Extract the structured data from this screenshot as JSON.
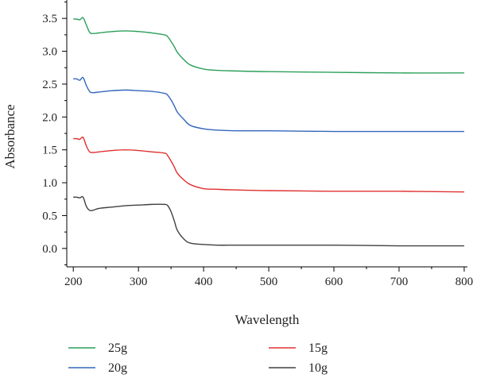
{
  "chart_data": {
    "type": "line",
    "xlabel": "Wavelength",
    "ylabel": "Absorbance",
    "xlim": [
      190,
      805
    ],
    "ylim": [
      -0.28,
      3.78
    ],
    "xticks": [
      200,
      300,
      400,
      500,
      600,
      700,
      800
    ],
    "xtick_labels": [
      "200",
      "300",
      "400",
      "500",
      "600",
      "700",
      "800"
    ],
    "yticks": [
      0.0,
      0.5,
      1.0,
      1.5,
      2.0,
      2.5,
      3.0,
      3.5
    ],
    "ytick_labels": [
      "0.0",
      "0.5",
      "1.0",
      "1.5",
      "2.0",
      "2.5",
      "3.0",
      "3.5"
    ],
    "grid": false,
    "legend_position": "bottom",
    "x": [
      200,
      205,
      210,
      215,
      220,
      225,
      230,
      240,
      260,
      280,
      300,
      320,
      340,
      345,
      350,
      355,
      360,
      370,
      380,
      400,
      420,
      450,
      500,
      600,
      700,
      800
    ],
    "series": [
      {
        "name": "25g",
        "color": "#2ca05a",
        "values": [
          3.49,
          3.49,
          3.48,
          3.51,
          3.4,
          3.29,
          3.27,
          3.28,
          3.3,
          3.31,
          3.3,
          3.28,
          3.25,
          3.22,
          3.15,
          3.07,
          2.98,
          2.87,
          2.79,
          2.73,
          2.71,
          2.7,
          2.69,
          2.68,
          2.67,
          2.67
        ]
      },
      {
        "name": "20g",
        "color": "#3366bb",
        "values": [
          2.58,
          2.58,
          2.56,
          2.6,
          2.48,
          2.39,
          2.37,
          2.38,
          2.4,
          2.41,
          2.4,
          2.39,
          2.36,
          2.33,
          2.26,
          2.17,
          2.07,
          1.96,
          1.87,
          1.82,
          1.8,
          1.79,
          1.79,
          1.78,
          1.78,
          1.78
        ]
      },
      {
        "name": "15g",
        "color": "#e03030",
        "values": [
          1.67,
          1.67,
          1.66,
          1.69,
          1.56,
          1.47,
          1.46,
          1.47,
          1.49,
          1.5,
          1.49,
          1.47,
          1.45,
          1.41,
          1.33,
          1.24,
          1.14,
          1.04,
          0.97,
          0.91,
          0.9,
          0.89,
          0.88,
          0.87,
          0.87,
          0.86
        ]
      },
      {
        "name": "10g",
        "color": "#404040",
        "values": [
          0.78,
          0.78,
          0.77,
          0.78,
          0.64,
          0.58,
          0.58,
          0.61,
          0.63,
          0.65,
          0.66,
          0.67,
          0.67,
          0.65,
          0.56,
          0.42,
          0.27,
          0.14,
          0.08,
          0.06,
          0.05,
          0.05,
          0.05,
          0.05,
          0.04,
          0.04
        ]
      }
    ]
  }
}
